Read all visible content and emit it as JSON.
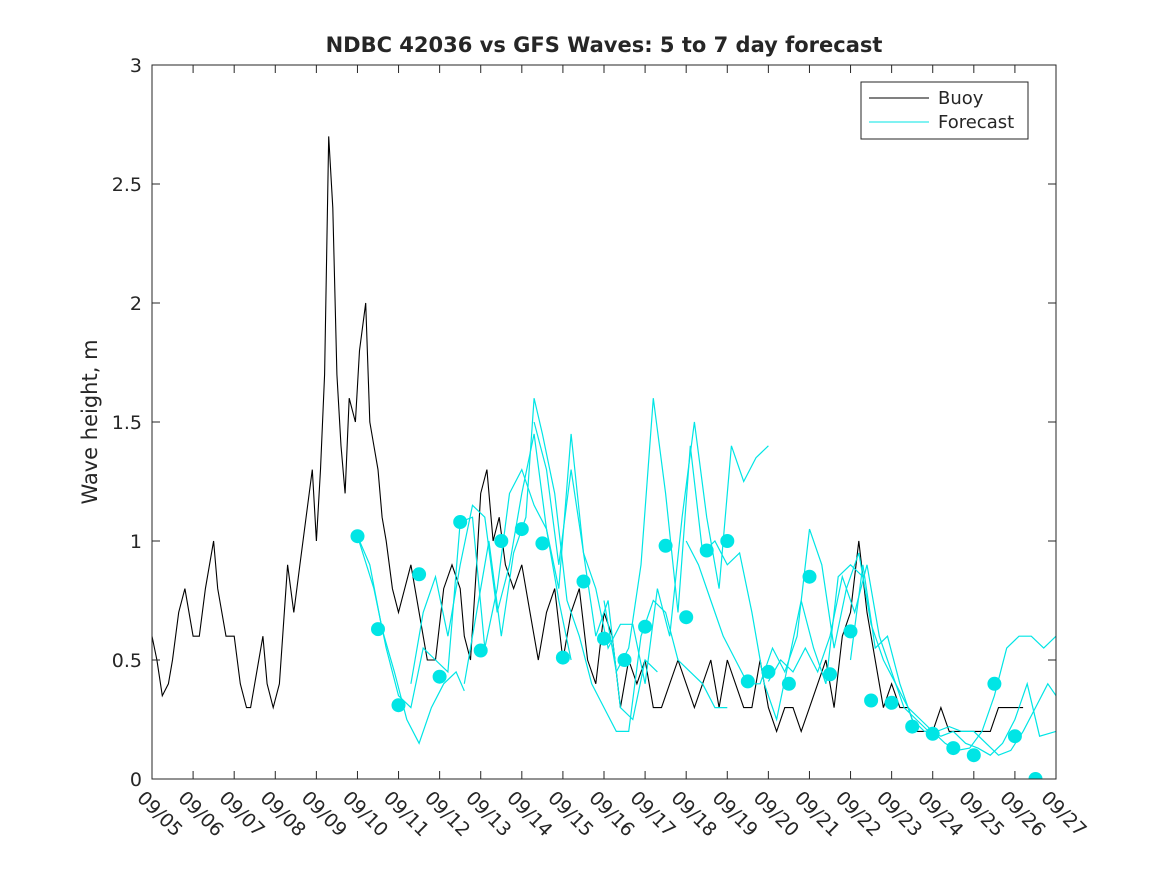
{
  "chart_data": {
    "type": "line",
    "title": "NDBC 42036 vs GFS Waves: 5 to 7 day forecast",
    "xlabel": "",
    "ylabel": "Wave height, m",
    "ylim": [
      0,
      3
    ],
    "xlim": [
      0,
      22
    ],
    "yticks": [
      0,
      0.5,
      1,
      1.5,
      2,
      2.5,
      3
    ],
    "ytick_labels": [
      "0",
      "0.5",
      "1",
      "1.5",
      "2",
      "2.5",
      "3"
    ],
    "xticks": [
      0,
      1,
      2,
      3,
      4,
      5,
      6,
      7,
      8,
      9,
      10,
      11,
      12,
      13,
      14,
      15,
      16,
      17,
      18,
      19,
      20,
      21,
      22
    ],
    "xtick_labels": [
      "09/05",
      "09/06",
      "09/07",
      "09/08",
      "09/09",
      "09/10",
      "09/11",
      "09/12",
      "09/13",
      "09/14",
      "09/15",
      "09/16",
      "09/17",
      "09/18",
      "09/19",
      "09/20",
      "09/21",
      "09/22",
      "09/23",
      "09/24",
      "09/25",
      "09/26",
      "09/27"
    ],
    "x_units": "days since 09/05",
    "grid": false,
    "legend": {
      "position": "top-right",
      "entries": [
        "Buoy",
        "Forecast"
      ]
    },
    "colors": {
      "buoy": "#000000",
      "forecast": "#00e5e5",
      "axes": "#262626"
    },
    "series": [
      {
        "name": "Buoy",
        "style": "line",
        "x": [
          0,
          0.12,
          0.25,
          0.4,
          0.5,
          0.65,
          0.8,
          1.0,
          1.15,
          1.3,
          1.5,
          1.6,
          1.8,
          2.0,
          2.15,
          2.3,
          2.4,
          2.5,
          2.6,
          2.7,
          2.8,
          2.95,
          3.1,
          3.3,
          3.45,
          3.6,
          3.75,
          3.9,
          4.0,
          4.1,
          4.2,
          4.3,
          4.4,
          4.5,
          4.6,
          4.7,
          4.8,
          4.95,
          5.05,
          5.2,
          5.3,
          5.4,
          5.5,
          5.6,
          5.7,
          5.85,
          6.0,
          6.15,
          6.3,
          6.5,
          6.7,
          6.9,
          7.1,
          7.3,
          7.5,
          7.6,
          7.75,
          7.9,
          8.0,
          8.15,
          8.3,
          8.45,
          8.6,
          8.8,
          9.0,
          9.2,
          9.4,
          9.6,
          9.8,
          10.0,
          10.2,
          10.4,
          10.6,
          10.8,
          11.0,
          11.2,
          11.4,
          11.6,
          11.8,
          12.0,
          12.2,
          12.4,
          12.6,
          12.8,
          13.0,
          13.2,
          13.4,
          13.6,
          13.8,
          14.0,
          14.2,
          14.4,
          14.6,
          14.8,
          15.0,
          15.2,
          15.4,
          15.6,
          15.8,
          16.0,
          16.2,
          16.4,
          16.6,
          16.8,
          17.0,
          17.2,
          17.4,
          17.6,
          17.8,
          18.0,
          18.2,
          18.4,
          18.6,
          18.8,
          19.0,
          19.2,
          19.4,
          19.6,
          19.8,
          20.0,
          20.2,
          20.4,
          20.6,
          20.8,
          21.0,
          21.2
        ],
        "values": [
          0.6,
          0.5,
          0.35,
          0.4,
          0.5,
          0.7,
          0.8,
          0.6,
          0.6,
          0.8,
          1.0,
          0.8,
          0.6,
          0.6,
          0.4,
          0.3,
          0.3,
          0.4,
          0.5,
          0.6,
          0.4,
          0.3,
          0.4,
          0.9,
          0.7,
          0.9,
          1.1,
          1.3,
          1.0,
          1.3,
          1.7,
          2.7,
          2.4,
          1.7,
          1.4,
          1.2,
          1.6,
          1.5,
          1.8,
          2.0,
          1.5,
          1.4,
          1.3,
          1.1,
          1.0,
          0.8,
          0.7,
          0.8,
          0.9,
          0.7,
          0.5,
          0.5,
          0.8,
          0.9,
          0.8,
          0.6,
          0.5,
          0.9,
          1.2,
          1.3,
          1.0,
          1.1,
          0.9,
          0.8,
          0.9,
          0.7,
          0.5,
          0.7,
          0.8,
          0.5,
          0.7,
          0.8,
          0.5,
          0.4,
          0.7,
          0.6,
          0.3,
          0.5,
          0.4,
          0.5,
          0.3,
          0.3,
          0.4,
          0.5,
          0.4,
          0.3,
          0.4,
          0.5,
          0.3,
          0.5,
          0.4,
          0.3,
          0.3,
          0.5,
          0.3,
          0.2,
          0.3,
          0.3,
          0.2,
          0.3,
          0.4,
          0.5,
          0.3,
          0.6,
          0.7,
          1.0,
          0.7,
          0.5,
          0.3,
          0.4,
          0.3,
          0.3,
          0.2,
          0.2,
          0.2,
          0.3,
          0.2,
          0.2,
          0.2,
          0.2,
          0.2,
          0.2,
          0.3,
          0.3,
          0.3,
          0.3
        ]
      },
      {
        "name": "Forecast",
        "style": "line",
        "lines": [
          {
            "x": [
              5.0,
              5.3,
              5.6,
              5.9,
              6.2,
              6.5,
              6.8,
              7.1,
              7.4,
              7.6
            ],
            "values": [
              1.02,
              0.9,
              0.63,
              0.45,
              0.25,
              0.15,
              0.3,
              0.4,
              0.45,
              0.37
            ]
          },
          {
            "x": [
              5.0,
              5.4,
              5.7,
              6.0,
              6.3,
              6.6,
              6.9,
              7.2,
              7.5,
              7.8,
              8.1,
              8.4,
              8.7,
              9.0,
              9.3,
              9.6,
              9.9,
              10.2
            ],
            "values": [
              1.02,
              0.8,
              0.55,
              0.35,
              0.3,
              0.55,
              0.5,
              0.45,
              1.08,
              1.1,
              0.55,
              0.8,
              1.2,
              1.3,
              1.15,
              1.05,
              0.75,
              0.5
            ]
          },
          {
            "x": [
              6.3,
              6.6,
              6.9,
              7.2,
              7.5,
              7.8,
              8.1,
              8.4,
              8.7,
              9.0,
              9.3,
              9.6,
              9.9,
              10.2,
              10.5,
              10.8,
              11.1,
              11.4,
              11.7,
              12.0,
              12.3
            ],
            "values": [
              0.4,
              0.7,
              0.85,
              0.6,
              0.9,
              1.15,
              1.1,
              0.7,
              0.9,
              1.2,
              1.45,
              1.05,
              0.8,
              1.45,
              0.95,
              0.6,
              0.75,
              0.3,
              0.25,
              0.5,
              0.45
            ]
          },
          {
            "x": [
              7.6,
              7.9,
              8.2,
              8.5,
              8.8,
              9.1,
              9.3,
              9.5,
              9.8,
              10.1,
              10.4,
              10.7,
              11.0,
              11.3,
              11.6,
              11.9,
              12.2,
              12.5,
              12.8,
              13.1,
              13.4,
              13.7,
              14.0
            ],
            "values": [
              0.4,
              0.7,
              1.0,
              0.6,
              0.95,
              1.1,
              1.6,
              1.45,
              1.2,
              0.75,
              0.6,
              0.4,
              0.3,
              0.2,
              0.2,
              0.6,
              0.75,
              0.7,
              0.5,
              0.45,
              0.4,
              0.3,
              0.3
            ]
          },
          {
            "x": [
              9.3,
              9.6,
              9.9,
              10.2,
              10.5,
              10.8,
              11.1,
              11.4,
              11.7,
              12.0,
              12.3,
              12.6,
              12.9,
              13.2,
              13.5,
              13.8,
              14.1,
              14.4,
              14.7,
              15.0
            ],
            "values": [
              1.5,
              1.3,
              0.9,
              1.3,
              0.95,
              0.8,
              0.55,
              0.65,
              0.65,
              0.4,
              0.8,
              0.6,
              1.1,
              1.5,
              1.1,
              0.8,
              1.4,
              1.25,
              1.35,
              1.4
            ]
          },
          {
            "x": [
              11.0,
              11.3,
              11.6,
              11.9,
              12.2,
              12.5,
              12.8,
              13.1,
              13.4,
              13.7,
              14.0,
              14.3,
              14.6,
              14.9,
              15.2,
              15.5,
              15.8,
              16.1,
              16.4,
              16.7,
              17.0,
              17.3
            ],
            "values": [
              0.75,
              0.45,
              0.55,
              0.9,
              1.6,
              1.2,
              0.7,
              1.4,
              0.95,
              1.0,
              0.9,
              0.95,
              0.7,
              0.4,
              0.25,
              0.5,
              0.75,
              0.55,
              0.4,
              0.85,
              0.9,
              0.85
            ]
          },
          {
            "x": [
              13.0,
              13.3,
              13.6,
              13.9,
              14.2,
              14.5,
              14.8,
              15.1,
              15.4,
              15.7,
              16.0,
              16.3,
              16.6,
              16.9,
              17.2,
              17.5,
              17.8,
              18.1,
              18.4,
              18.7,
              19.0,
              19.3,
              19.6,
              19.9,
              20.2,
              20.5,
              20.8,
              21.1,
              21.4,
              21.7,
              22.0
            ],
            "values": [
              1.0,
              0.9,
              0.75,
              0.6,
              0.5,
              0.4,
              0.4,
              0.55,
              0.45,
              0.6,
              1.05,
              0.9,
              0.55,
              0.8,
              0.95,
              0.65,
              0.5,
              0.4,
              0.3,
              0.25,
              0.2,
              0.15,
              0.12,
              0.13,
              0.2,
              0.35,
              0.55,
              0.6,
              0.6,
              0.55,
              0.6
            ]
          },
          {
            "x": [
              15.0,
              15.3,
              15.6,
              15.9,
              16.2,
              16.5,
              16.8,
              17.1,
              17.4,
              17.7,
              18.0,
              18.3,
              18.6,
              18.9,
              19.2,
              19.5,
              19.8,
              20.1,
              20.4,
              20.7,
              21.0,
              21.3,
              21.6,
              22.0
            ],
            "values": [
              0.41,
              0.5,
              0.45,
              0.55,
              0.45,
              0.6,
              0.85,
              0.7,
              0.9,
              0.6,
              0.45,
              0.3,
              0.25,
              0.2,
              0.18,
              0.2,
              0.15,
              0.13,
              0.1,
              0.15,
              0.25,
              0.4,
              0.18,
              0.2
            ]
          },
          {
            "x": [
              17.0,
              17.3,
              17.6,
              17.9,
              18.2,
              18.5,
              18.8,
              19.1,
              19.4,
              19.7,
              20.0,
              20.3,
              20.6,
              20.9,
              21.2,
              21.5,
              21.8,
              22.0
            ],
            "values": [
              0.5,
              0.9,
              0.55,
              0.6,
              0.4,
              0.25,
              0.2,
              0.2,
              0.22,
              0.2,
              0.2,
              0.15,
              0.1,
              0.12,
              0.2,
              0.3,
              0.4,
              0.35
            ]
          }
        ]
      },
      {
        "name": "Forecast markers",
        "style": "marker",
        "x": [
          5.0,
          5.5,
          6.0,
          6.5,
          7.0,
          7.5,
          8.0,
          8.5,
          9.0,
          9.5,
          10.0,
          10.5,
          11.0,
          11.5,
          12.0,
          12.5,
          13.0,
          13.5,
          14.0,
          14.5,
          15.0,
          15.5,
          16.0,
          16.5,
          17.0,
          17.5,
          18.0,
          18.5,
          19.0,
          19.5,
          20.0,
          20.5,
          21.0,
          21.5
        ],
        "values": [
          1.02,
          0.63,
          0.31,
          0.86,
          0.43,
          1.08,
          0.54,
          1.0,
          1.05,
          0.99,
          0.51,
          0.83,
          0.59,
          0.5,
          0.64,
          0.98,
          0.68,
          0.96,
          1.0,
          0.41,
          0.45,
          0.4,
          0.85,
          0.44,
          0.62,
          0.33,
          0.32,
          0.22,
          0.19,
          0.13,
          0.1,
          0.4,
          0.18,
          0.0
        ]
      }
    ]
  }
}
